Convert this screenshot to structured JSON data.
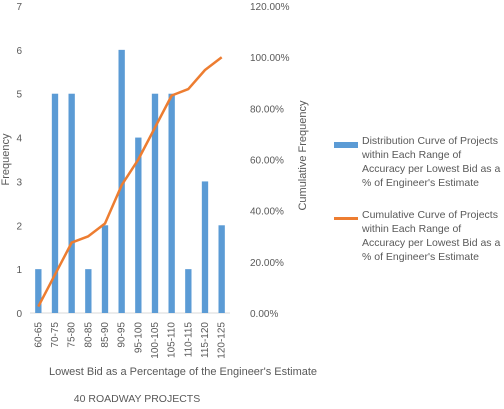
{
  "chart_data": {
    "type": "bar",
    "categories": [
      "60-65",
      "70-75",
      "75-80",
      "80-85",
      "85-90",
      "90-95",
      "95-100",
      "100-105",
      "105-110",
      "110-115",
      "115-120",
      "120-125"
    ],
    "series": [
      {
        "name": "Distribution Curve of Projects within Each Range of Accuracy per Lowest Bid as a % of Engineer's Estimate",
        "type": "bar",
        "axis": "left",
        "color": "#5b9bd5",
        "values": [
          1,
          5,
          5,
          1,
          2,
          6,
          4,
          5,
          5,
          1,
          3,
          2
        ]
      },
      {
        "name": "Cumulative Curve of Projects within Each Range of Accuracy per Lowest Bid as a % of Engineer's Estimate",
        "type": "line",
        "axis": "right",
        "color": "#ed7d31",
        "values": [
          2.5,
          15,
          27.5,
          30,
          35,
          50,
          60,
          72.5,
          85,
          87.5,
          95,
          100
        ]
      }
    ],
    "y_left": {
      "label": "Frequency",
      "min": 0,
      "max": 7,
      "ticks": [
        "0",
        "1",
        "2",
        "3",
        "4",
        "5",
        "6",
        "7"
      ]
    },
    "y_right": {
      "label": "Cumulative Frequency",
      "min": 0,
      "max": 120,
      "ticks": [
        "0.00%",
        "20.00%",
        "40.00%",
        "60.00%",
        "80.00%",
        "100.00%",
        "120.00%"
      ]
    },
    "xlabel": "Lowest Bid as a Percentage of the Engineer's Estimate",
    "subtitle": "40 ROADWAY PROJECTS",
    "grid": false,
    "legend": "right"
  }
}
